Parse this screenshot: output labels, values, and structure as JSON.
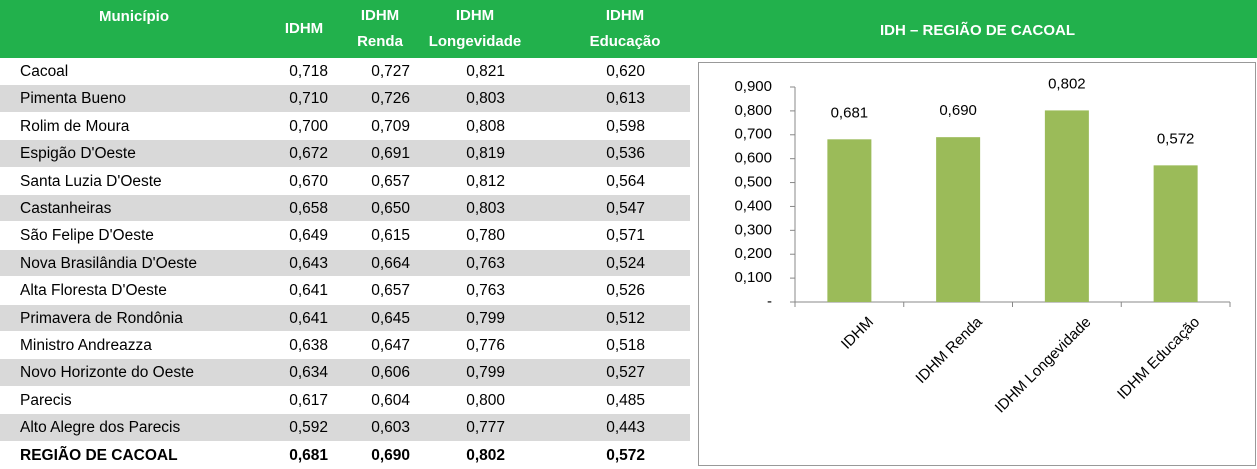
{
  "table": {
    "header": [
      "Município",
      "IDHM",
      "IDHM Renda",
      "IDHM Longevidade",
      "IDHM Educação"
    ],
    "rows": [
      [
        "Cacoal",
        "0,718",
        "0,727",
        "0,821",
        "0,620"
      ],
      [
        "Pimenta Bueno",
        "0,710",
        "0,726",
        "0,803",
        "0,613"
      ],
      [
        "Rolim de Moura",
        "0,700",
        "0,709",
        "0,808",
        "0,598"
      ],
      [
        "Espigão D'Oeste",
        "0,672",
        "0,691",
        "0,819",
        "0,536"
      ],
      [
        "Santa Luzia D'Oeste",
        "0,670",
        "0,657",
        "0,812",
        "0,564"
      ],
      [
        "Castanheiras",
        "0,658",
        "0,650",
        "0,803",
        "0,547"
      ],
      [
        "São Felipe D'Oeste",
        "0,649",
        "0,615",
        "0,780",
        "0,571"
      ],
      [
        "Nova Brasilândia D'Oeste",
        "0,643",
        "0,664",
        "0,763",
        "0,524"
      ],
      [
        "Alta Floresta D'Oeste",
        "0,641",
        "0,657",
        "0,763",
        "0,526"
      ],
      [
        "Primavera de Rondônia",
        "0,641",
        "0,645",
        "0,799",
        "0,512"
      ],
      [
        "Ministro Andreazza",
        "0,638",
        "0,647",
        "0,776",
        "0,518"
      ],
      [
        "Novo Horizonte do Oeste",
        "0,634",
        "0,606",
        "0,799",
        "0,527"
      ],
      [
        "Parecis",
        "0,617",
        "0,604",
        "0,800",
        "0,485"
      ],
      [
        "Alto Alegre dos Parecis",
        "0,592",
        "0,603",
        "0,777",
        "0,443"
      ],
      [
        "REGIÃO DE CACOAL",
        "0,681",
        "0,690",
        "0,802",
        "0,572"
      ]
    ]
  },
  "chart_data": {
    "type": "bar",
    "title": "IDH – REGIÃO DE CACOAL",
    "categories": [
      "IDHM",
      "IDHM Renda",
      "IDHM Longevidade",
      "IDHM Educação"
    ],
    "values": [
      0.681,
      0.69,
      0.802,
      0.572
    ],
    "value_labels": [
      "0,681",
      "0,690",
      "0,802",
      "0,572"
    ],
    "color": "#9bbb59",
    "ylim": [
      0,
      0.9
    ],
    "yticks": [
      {
        "value": 0,
        "label": "-"
      },
      {
        "value": 0.1,
        "label": "0,100"
      },
      {
        "value": 0.2,
        "label": "0,200"
      },
      {
        "value": 0.3,
        "label": "0,300"
      },
      {
        "value": 0.4,
        "label": "0,400"
      },
      {
        "value": 0.5,
        "label": "0,500"
      },
      {
        "value": 0.6,
        "label": "0,600"
      },
      {
        "value": 0.7,
        "label": "0,700"
      },
      {
        "value": 0.8,
        "label": "0,800"
      },
      {
        "value": 0.9,
        "label": "0,900"
      }
    ]
  }
}
